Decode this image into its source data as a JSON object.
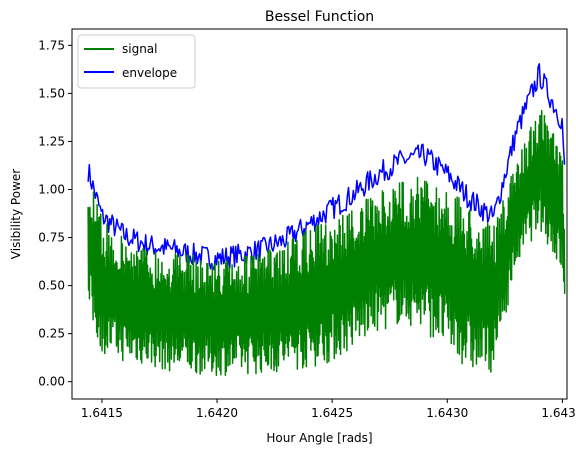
{
  "chart_data": {
    "type": "line",
    "title": "Bessel Function",
    "xlabel": "Hour Angle [rads]",
    "ylabel": "Visibility Power",
    "xlim": [
      1.64137,
      1.64352
    ],
    "ylim": [
      -0.09,
      1.835
    ],
    "x_ticks": [
      1.6415,
      1.642,
      1.6425,
      1.643,
      1.6435
    ],
    "x_tick_labels": [
      "1.6415",
      "1.6420",
      "1.6425",
      "1.6430",
      "1.6435"
    ],
    "y_ticks": [
      0.0,
      0.25,
      0.5,
      0.75,
      1.0,
      1.25,
      1.5,
      1.75
    ],
    "y_tick_labels": [
      "0.00",
      "0.25",
      "0.50",
      "0.75",
      "1.00",
      "1.25",
      "1.50",
      "1.75"
    ],
    "grid": false,
    "legend_position": "top-left",
    "series": [
      {
        "name": "signal",
        "color": "#008000",
        "x": [
          1.64144,
          1.6415,
          1.6416,
          1.6417,
          1.6418,
          1.6419,
          1.642,
          1.6421,
          1.6422,
          1.6423,
          1.6424,
          1.6425,
          1.6426,
          1.6427,
          1.6428,
          1.6429,
          1.643,
          1.6431,
          1.6432,
          1.6433,
          1.6434,
          1.6435,
          1.64351
        ],
        "upper": [
          1.1,
          0.85,
          0.75,
          0.7,
          0.68,
          0.66,
          0.64,
          0.65,
          0.68,
          0.72,
          0.8,
          0.85,
          0.92,
          0.98,
          1.05,
          1.08,
          1.0,
          0.92,
          0.8,
          1.15,
          1.45,
          1.2,
          0.7
        ],
        "lower": [
          0.35,
          0.15,
          0.1,
          0.08,
          0.05,
          0.04,
          0.03,
          0.04,
          0.04,
          0.05,
          0.07,
          0.1,
          0.18,
          0.26,
          0.3,
          0.26,
          0.16,
          0.05,
          0.05,
          0.6,
          0.8,
          0.55,
          0.35
        ]
      },
      {
        "name": "envelope",
        "color": "#0000ff",
        "x": [
          1.64144,
          1.6415,
          1.6416,
          1.6417,
          1.6418,
          1.6419,
          1.642,
          1.6421,
          1.6422,
          1.6423,
          1.6424,
          1.6425,
          1.6426,
          1.6427,
          1.6428,
          1.6429,
          1.643,
          1.6431,
          1.6432,
          1.6433,
          1.6434,
          1.6435,
          1.64351
        ],
        "values": [
          1.1,
          0.86,
          0.76,
          0.71,
          0.69,
          0.66,
          0.64,
          0.66,
          0.69,
          0.74,
          0.82,
          0.9,
          0.98,
          1.08,
          1.15,
          1.18,
          1.08,
          0.95,
          0.85,
          1.3,
          1.6,
          1.35,
          1.07
        ]
      }
    ]
  }
}
